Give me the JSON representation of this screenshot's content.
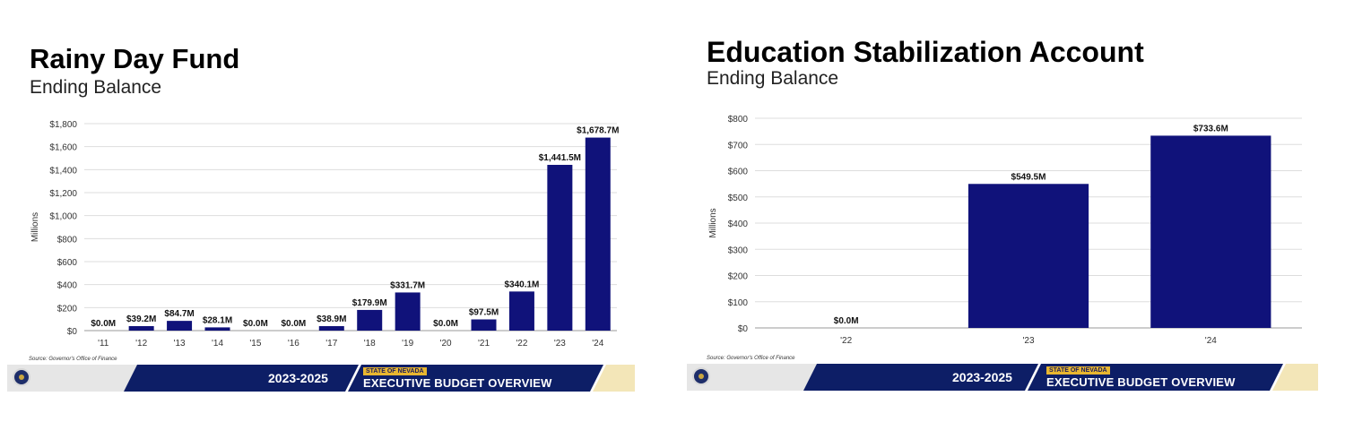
{
  "slides": [
    {
      "title": "Rainy Day Fund",
      "subtitle": "Ending Balance",
      "source": "Source: Governor's Office of Finance",
      "banner": {
        "years": "2023-2025",
        "state": "STATE OF NEVADA",
        "label": "EXECUTIVE BUDGET OVERVIEW"
      }
    },
    {
      "title": "Education Stabilization Account",
      "subtitle": "Ending Balance",
      "source": "Source: Governor's Office of Finance",
      "banner": {
        "years": "2023-2025",
        "state": "STATE OF NEVADA",
        "label": "EXECUTIVE BUDGET OVERVIEW"
      }
    }
  ],
  "colors": {
    "bar": "#10127a",
    "banner_navy": "#0d1e66",
    "banner_gold": "#e8b630",
    "grid": "#dddddd"
  },
  "chart_data": [
    {
      "type": "bar",
      "title": "Rainy Day Fund",
      "subtitle": "Ending Balance",
      "ylabel": "Millions",
      "xlabel": "",
      "categories": [
        "'11",
        "'12",
        "'13",
        "'14",
        "'15",
        "'16",
        "'17",
        "'18",
        "'19",
        "'20",
        "'21",
        "'22",
        "'23",
        "'24"
      ],
      "values": [
        0.0,
        39.2,
        84.7,
        28.1,
        0.0,
        0.0,
        38.9,
        179.9,
        331.7,
        0.0,
        97.5,
        340.1,
        1441.5,
        1678.7
      ],
      "data_labels": [
        "$0.0M",
        "$39.2M",
        "$84.7M",
        "$28.1M",
        "$0.0M",
        "$0.0M",
        "$38.9M",
        "$179.9M",
        "$331.7M",
        "$0.0M",
        "$97.5M",
        "$340.1M",
        "$1,441.5M",
        "$1,678.7M"
      ],
      "yticks": [
        0,
        200,
        400,
        600,
        800,
        1000,
        1200,
        1400,
        1600,
        1800
      ],
      "ytick_labels": [
        "$0",
        "$200",
        "$400",
        "$600",
        "$800",
        "$1,000",
        "$1,200",
        "$1,400",
        "$1,600",
        "$1,800"
      ],
      "ylim": [
        0,
        1800
      ],
      "grid": true,
      "legend": "none"
    },
    {
      "type": "bar",
      "title": "Education Stabilization Account",
      "subtitle": "Ending Balance",
      "ylabel": "Millions",
      "xlabel": "",
      "categories": [
        "'22",
        "'23",
        "'24"
      ],
      "values": [
        0.0,
        549.5,
        733.6
      ],
      "data_labels": [
        "$0.0M",
        "$549.5M",
        "$733.6M"
      ],
      "yticks": [
        0,
        100,
        200,
        300,
        400,
        500,
        600,
        700,
        800
      ],
      "ytick_labels": [
        "$0",
        "$100",
        "$200",
        "$300",
        "$400",
        "$500",
        "$600",
        "$700",
        "$800"
      ],
      "ylim": [
        0,
        800
      ],
      "grid": true,
      "legend": "none"
    }
  ]
}
